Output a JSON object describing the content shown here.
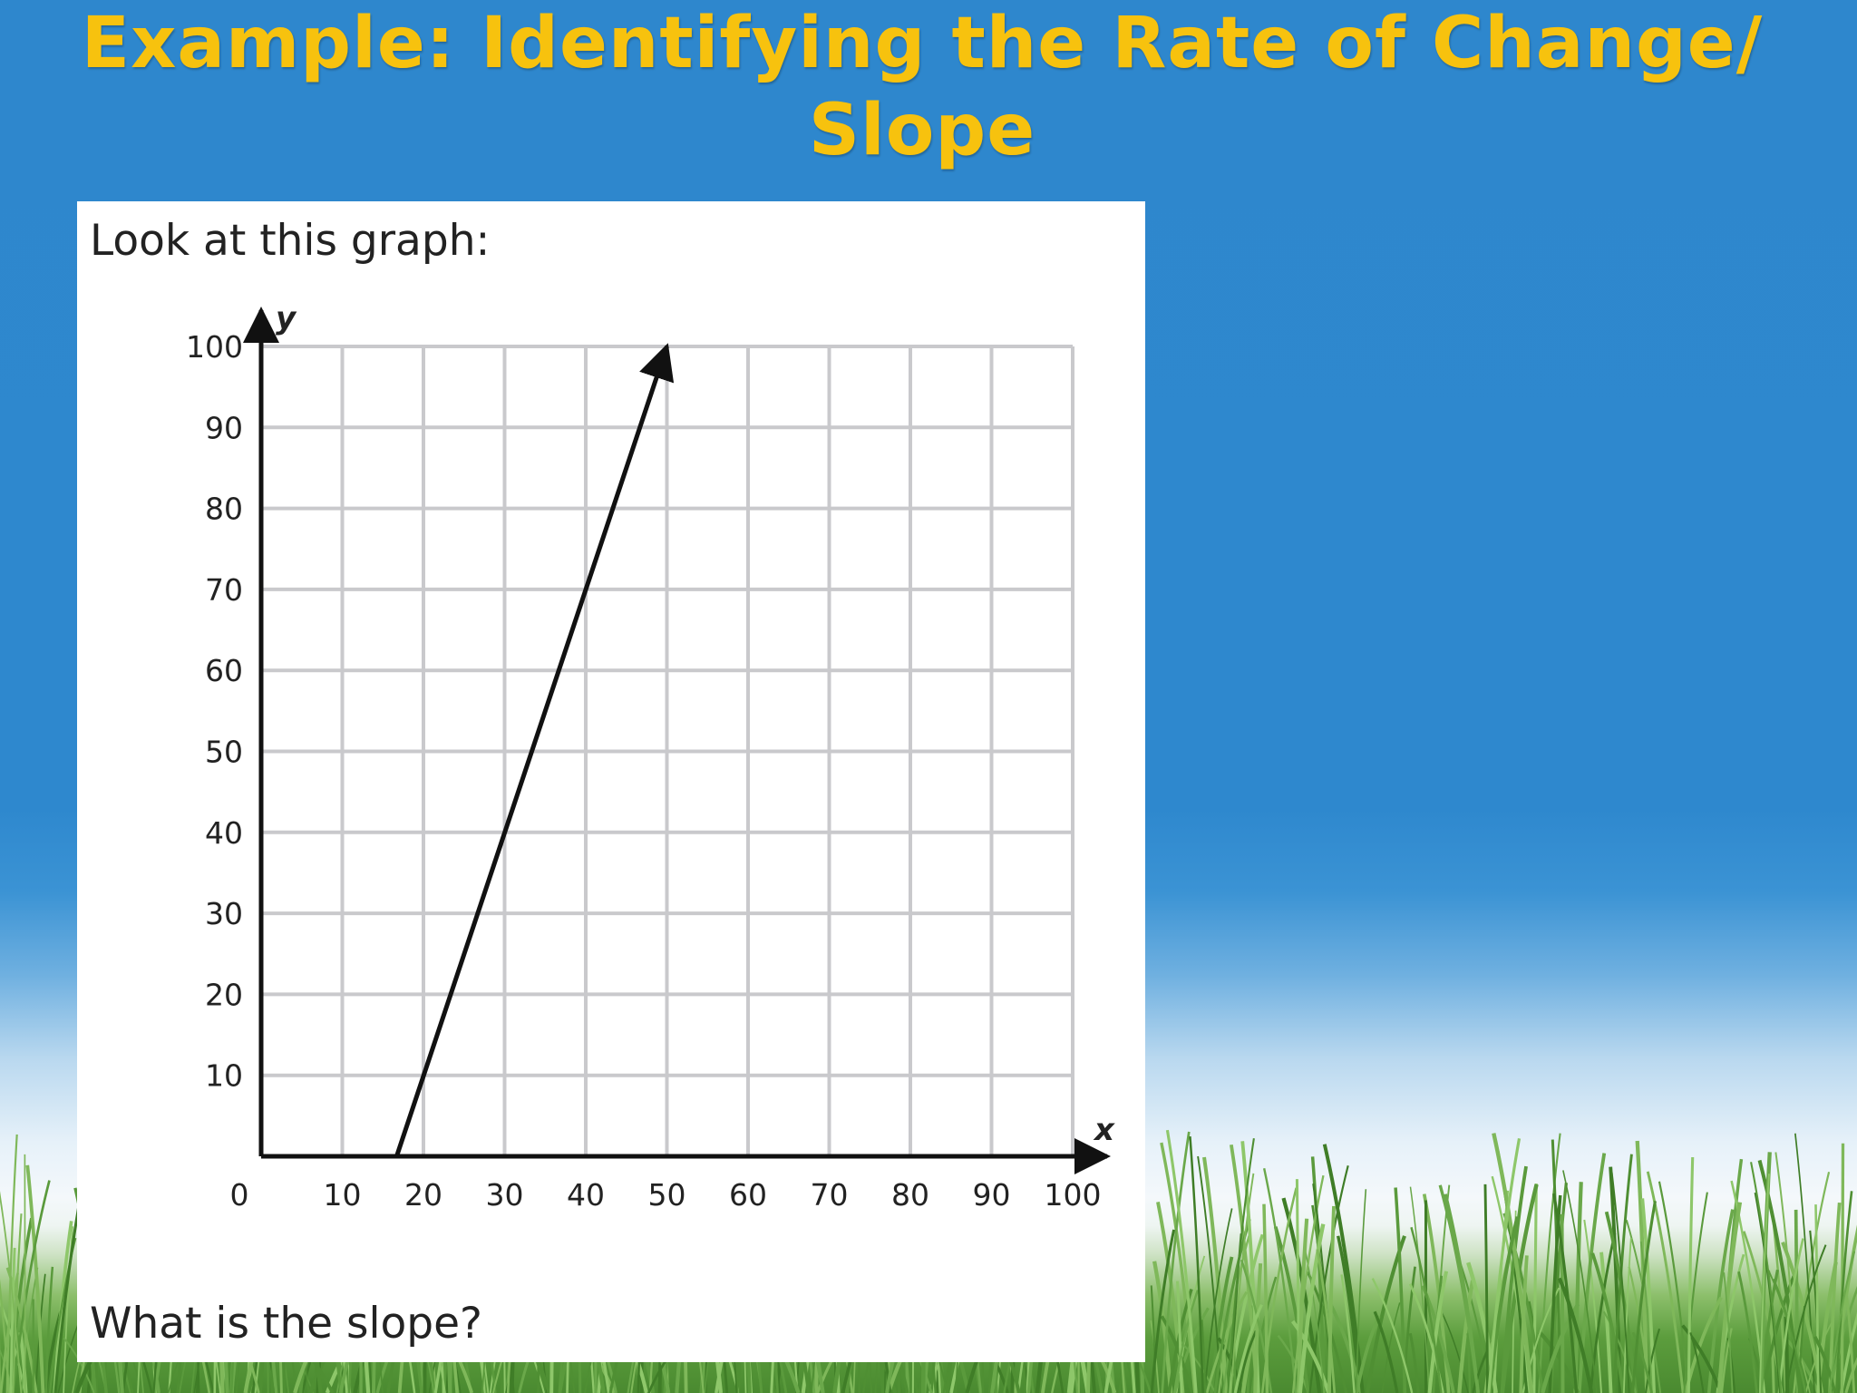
{
  "slide": {
    "title_line1": "Example: Identifying the Rate of Change/",
    "title_line2": "Slope",
    "title_color": "#f7c20e",
    "background_color": "#2e87cd"
  },
  "panel": {
    "prompt": "Look at this graph:",
    "question": "What is the slope?"
  },
  "chart_data": {
    "type": "line",
    "title": "",
    "xlabel": "x",
    "ylabel": "y",
    "xlim": [
      0,
      100
    ],
    "ylim": [
      0,
      100
    ],
    "x_ticks": [
      10,
      20,
      30,
      40,
      50,
      60,
      70,
      80,
      90,
      100
    ],
    "y_ticks": [
      10,
      20,
      30,
      40,
      50,
      60,
      70,
      80,
      90,
      100
    ],
    "origin_label": "0",
    "grid": true,
    "series": [
      {
        "x": [
          16.7,
          50
        ],
        "y": [
          0,
          100
        ],
        "arrow_end": true
      }
    ]
  }
}
